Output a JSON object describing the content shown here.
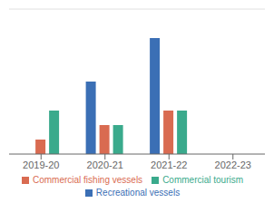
{
  "chart_data": {
    "type": "bar",
    "categories": [
      "2019-20",
      "2020-21",
      "2021-22",
      "2022-23"
    ],
    "series": [
      {
        "name": "Recreational vessels",
        "color": "#3b6fb5",
        "values": [
          0,
          5,
          8,
          0
        ]
      },
      {
        "name": "Commercial fishing vessels",
        "color": "#d96b51",
        "values": [
          1,
          2,
          3,
          0
        ]
      },
      {
        "name": "Commercial tourism",
        "color": "#3aaa8c",
        "values": [
          3,
          2,
          3,
          0
        ]
      }
    ],
    "ylim": [
      0,
      10
    ],
    "grid": false,
    "legend": "bottom",
    "tick_labels": "x"
  }
}
